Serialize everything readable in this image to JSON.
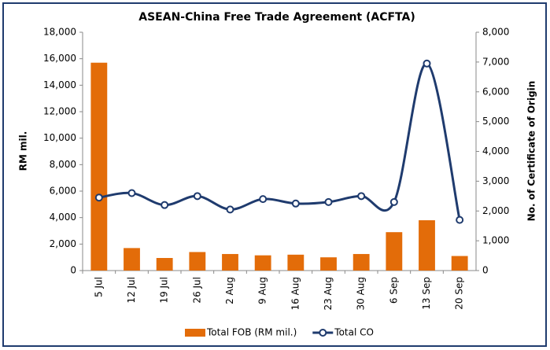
{
  "chart_data": {
    "type": "bar_line",
    "title": "ASEAN-China Free Trade Agreement (ACFTA)",
    "y_label": "RM mil.",
    "y2_label": "No. of Certificate of Origin",
    "categories": [
      "5 Jul",
      "12 Jul",
      "19 Jul",
      "26 Jul",
      "2 Aug",
      "9 Aug",
      "16 Aug",
      "23 Aug",
      "30 Aug",
      "6 Sep",
      "13 Sep",
      "20 Sep"
    ],
    "series": [
      {
        "name": "Total FOB (RM mil.)",
        "color": "#e36c09",
        "kind": "bar",
        "axis": "y",
        "values": [
          15700,
          1700,
          950,
          1400,
          1250,
          1150,
          1200,
          1000,
          1250,
          2900,
          3800,
          1100
        ]
      },
      {
        "name": "Total CO",
        "color": "#1f3b6e",
        "kind": "line",
        "axis": "y2",
        "values": [
          2450,
          2600,
          2200,
          2500,
          2050,
          2400,
          2250,
          2300,
          2500,
          2300,
          6950,
          1700
        ]
      }
    ],
    "ylim": [
      0,
      18000
    ],
    "yticks": [
      0,
      {
        "value": 2000,
        "label": "2,000"
      },
      {
        "value": 4000,
        "label": "4,000"
      },
      {
        "value": 6000,
        "label": "6,000"
      },
      {
        "value": 8000,
        "label": "8,000"
      },
      {
        "value": 10000,
        "label": "10,000"
      },
      {
        "value": 12000,
        "label": "12,000"
      },
      {
        "value": 14000,
        "label": "14,000"
      },
      {
        "value": 16000,
        "label": "16,000"
      },
      {
        "value": 18000,
        "label": "18,000"
      }
    ],
    "y2lim": [
      0,
      8000
    ],
    "y2ticks": [
      0,
      {
        "value": 1000,
        "label": "1,000"
      },
      {
        "value": 2000,
        "label": "2,000"
      },
      {
        "value": 3000,
        "label": "3,000"
      },
      {
        "value": 4000,
        "label": "4,000"
      },
      {
        "value": 5000,
        "label": "5,000"
      },
      {
        "value": 6000,
        "label": "6,000"
      },
      {
        "value": 7000,
        "label": "7,000"
      },
      {
        "value": 8000,
        "label": "8,000"
      }
    ],
    "grid": false
  }
}
